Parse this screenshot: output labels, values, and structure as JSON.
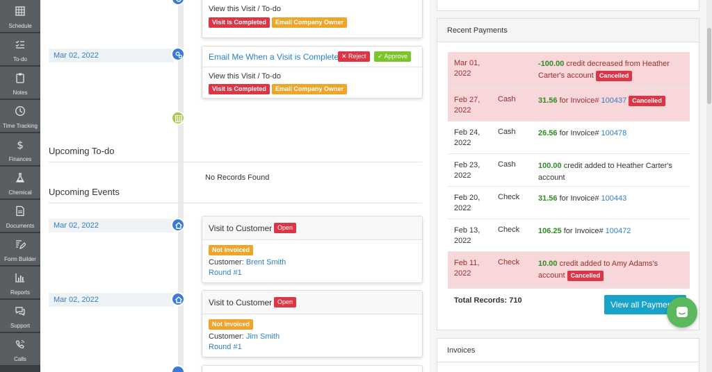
{
  "sidebar": {
    "items": [
      {
        "label": "Schedule",
        "icon": "calendar-icon"
      },
      {
        "label": "To-do",
        "icon": "checklist-icon"
      },
      {
        "label": "Notes",
        "icon": "clipboard-icon"
      },
      {
        "label": "Time Tracking",
        "icon": "clock-icon"
      },
      {
        "label": "Finances",
        "icon": "dollar-icon"
      },
      {
        "label": "Chemical",
        "icon": "flask-icon"
      },
      {
        "label": "Documents",
        "icon": "document-icon"
      },
      {
        "label": "Form Builder",
        "icon": "form-edit-icon"
      },
      {
        "label": "Reports",
        "icon": "bar-chart-icon"
      },
      {
        "label": "Support",
        "icon": "chat-icon"
      },
      {
        "label": "Calls",
        "icon": "phone-icon"
      }
    ]
  },
  "timeline": {
    "top_card": {
      "text": "View this Visit / To-do",
      "badge_completed": "Visit is Completed",
      "badge_owner": "Email Company Owner"
    },
    "email_card": {
      "date": "Mar 02, 2022",
      "title": "Email Me When a Visit is Complete",
      "reject": "✕ Reject",
      "approve": "✓ Approve",
      "text": "View this Visit / To-do",
      "badge_completed": "Visit is Completed",
      "badge_owner": "Email Company Owner"
    }
  },
  "upcoming_todo": {
    "title": "Upcoming To-do",
    "empty": "No Records Found"
  },
  "upcoming_events": {
    "title": "Upcoming Events",
    "events": [
      {
        "date": "Mar 02, 2022",
        "title": "Visit to Customer",
        "status": "Open",
        "invoice": "Not Invoiced",
        "customer_label": "Customer:",
        "customer": "Brent Smith",
        "round": "Round #1"
      },
      {
        "date": "Mar 02, 2022",
        "title": "Visit to Customer",
        "status": "Open",
        "invoice": "Not Invoiced",
        "customer_label": "Customer:",
        "customer": "Jim Smith",
        "round": "Round #1"
      }
    ]
  },
  "recent_payments": {
    "title": "Recent Payments",
    "rows": [
      {
        "date": "Mar 01, 2022",
        "method": "",
        "amount": "-100.00",
        "text": " credit decreased from Heather Carter's account",
        "link": "",
        "badge": "Cancelled",
        "cancelled": true
      },
      {
        "date": "Feb 27, 2022",
        "method": "Cash",
        "amount": "31.56",
        "text": " for Invoice# ",
        "link": "100437",
        "badge": "Cancelled",
        "cancelled": true
      },
      {
        "date": "Feb 24, 2022",
        "method": "Cash",
        "amount": "26.56",
        "text": " for Invoice# ",
        "link": "100478",
        "badge": "",
        "cancelled": false
      },
      {
        "date": "Feb 23, 2022",
        "method": "Cash",
        "amount": "100.00",
        "text": " credit added to Heather Carter's account",
        "link": "",
        "badge": "",
        "cancelled": false
      },
      {
        "date": "Feb 20, 2022",
        "method": "Check",
        "amount": "31.56",
        "text": " for Invoice# ",
        "link": "100443",
        "badge": "",
        "cancelled": false
      },
      {
        "date": "Feb 13, 2022",
        "method": "Check",
        "amount": "106.25",
        "text": " for Invoice# ",
        "link": "100472",
        "badge": "",
        "cancelled": false
      },
      {
        "date": "Feb 11, 2022",
        "method": "Check",
        "amount": "10.00",
        "text": " credit added to Amy Adams's account",
        "link": "",
        "badge": "Cancelled",
        "cancelled": true
      }
    ],
    "total_label": "Total Records: 710",
    "view_all": "View all Payments"
  },
  "invoices": {
    "title": "Invoices"
  },
  "colors": {
    "sidebar": "#3b3f44",
    "accent": "#2a7fc5",
    "danger": "#dc3545",
    "warning": "#f0a429",
    "success": "#7cc42a",
    "chat": "#5cb85c",
    "cta": "#1aa3c9"
  }
}
